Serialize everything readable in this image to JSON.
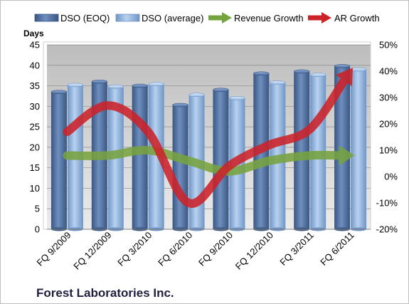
{
  "chart_data": {
    "type": "bar",
    "title": "",
    "ylabel": "Days",
    "xlabel": "",
    "categories": [
      "FQ 9/2009",
      "FQ 12/2009",
      "FQ 3/2010",
      "FQ 6/2010",
      "FQ 9/2010",
      "FQ 12/2010",
      "FQ 3/2011",
      "FQ 6/2011"
    ],
    "ylim": [
      0,
      45
    ],
    "yticks": [
      0,
      5,
      10,
      15,
      20,
      25,
      30,
      35,
      40,
      45
    ],
    "y2lim": [
      -20,
      50
    ],
    "y2ticks": [
      -20,
      -10,
      0,
      10,
      20,
      30,
      40,
      50
    ],
    "y2tick_labels": [
      "-20%",
      "-10%",
      "0%",
      "10%",
      "20%",
      "30%",
      "40%",
      "50%"
    ],
    "grid": true,
    "legend_position": "top",
    "series": [
      {
        "name": "DSO (EOQ)",
        "kind": "bar",
        "axis": "left",
        "color": "#4f6fa0",
        "values": [
          33.5,
          36,
          35,
          30.3,
          34,
          38,
          38.5,
          39.8
        ]
      },
      {
        "name": "DSO (average)",
        "kind": "bar",
        "axis": "left",
        "color": "#8eb3e0",
        "values": [
          35.2,
          34.8,
          35.4,
          32.8,
          32,
          35.8,
          37.7,
          39
        ]
      },
      {
        "name": "Revenue Growth",
        "kind": "arrow-line",
        "axis": "right",
        "color": "#77a33f",
        "values": [
          8,
          8,
          10,
          6,
          2,
          6,
          8,
          8
        ]
      },
      {
        "name": "AR Growth",
        "kind": "arrow-line",
        "axis": "right",
        "color": "#cc2229",
        "values": [
          17,
          27,
          17,
          -10,
          4,
          12,
          18,
          40
        ]
      }
    ],
    "company": "Forest Laboratories Inc."
  }
}
